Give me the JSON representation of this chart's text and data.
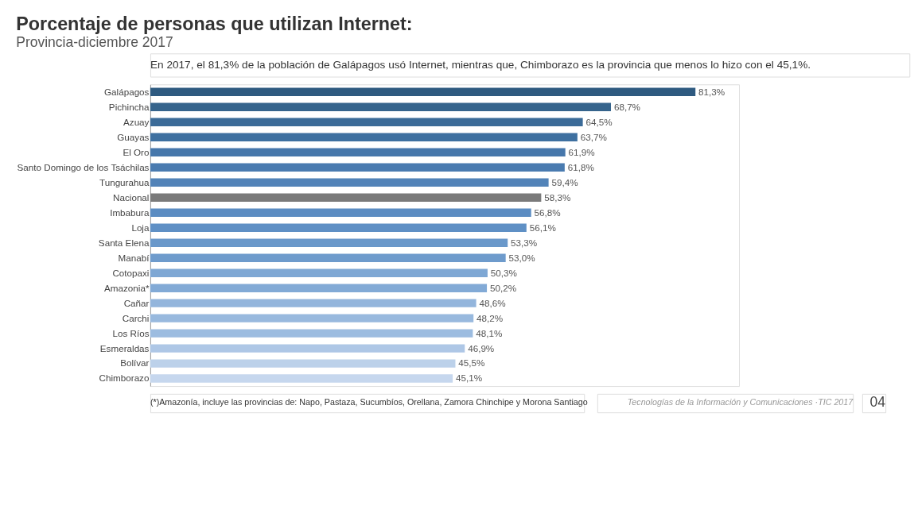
{
  "chart_data": {
    "type": "bar",
    "orientation": "horizontal",
    "title": "Porcentaje de personas que utilizan Internet:",
    "subtitle": "Provincia-diciembre 2017",
    "categories": [
      "Galápagos",
      "Pichincha",
      "Azuay",
      "Guayas",
      "El Oro",
      "Santo Domingo de los Tsáchilas",
      "Tungurahua",
      "Nacional",
      "Imbabura",
      "Loja",
      "Santa Elena",
      "Manabí",
      "Cotopaxi",
      "Amazonia*",
      "Cañar",
      "Carchi",
      "Los Ríos",
      "Esmeraldas",
      "Bolívar",
      "Chimborazo"
    ],
    "values": [
      81.3,
      68.7,
      64.5,
      63.7,
      61.9,
      61.8,
      59.4,
      58.3,
      56.8,
      56.1,
      53.3,
      53.0,
      50.3,
      50.2,
      48.6,
      48.2,
      48.1,
      46.9,
      45.5,
      45.1
    ],
    "value_labels": [
      "81,3%",
      "68,7%",
      "64,5%",
      "63,7%",
      "61,9%",
      "61,8%",
      "59,4%",
      "58,3%",
      "56,8%",
      "56,1%",
      "53,3%",
      "53,0%",
      "50,3%",
      "50,2%",
      "48,6%",
      "48,2%",
      "48,1%",
      "46,9%",
      "45,5%",
      "45,1%"
    ],
    "colors": [
      "#2e5a80",
      "#36648c",
      "#3b6b98",
      "#3e70a0",
      "#4677ab",
      "#4a7bb0",
      "#5283b8",
      "#7a7a7a",
      "#5b8cc2",
      "#5f90c5",
      "#6a98ca",
      "#6e9bcc",
      "#7ea7d4",
      "#82aad6",
      "#93b5dc",
      "#98b9de",
      "#9cbce0",
      "#aec7e6",
      "#bcd1ea",
      "#c6d7ee"
    ],
    "annotations": [
      "En 2017, el 81,3% de la población de Galápagos usó Internet, mientras que, Chimborazo es la provincia que menos lo hizo con el 45,1%.",
      "(*)Amazonía, incluye las provincias de: Napo, Pastaza, Sucumbíos, Orellana, Zamora Chinchipe y Morona Santiago",
      "Tecnologías de la Información y Comunicaciones ·TIC 2017",
      "04"
    ]
  }
}
